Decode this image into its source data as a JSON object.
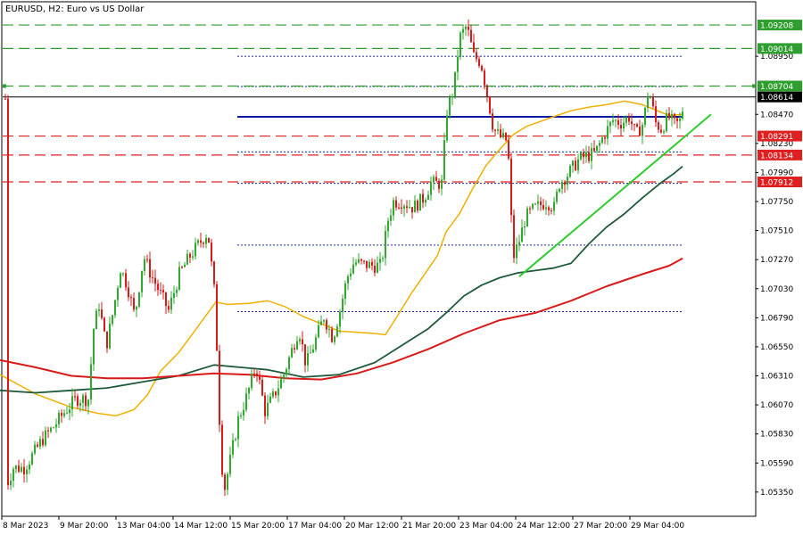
{
  "chart_data": {
    "type": "candlestick",
    "title": "EURUSD, H2:  Euro vs US Dollar",
    "ylim": [
      1.0515,
      1.094
    ],
    "y_ticks": [
      "1.08950",
      "1.08470",
      "1.08230",
      "1.07990",
      "1.07750",
      "1.07510",
      "1.07270",
      "1.07030",
      "1.06790",
      "1.06550",
      "1.06310",
      "1.06070",
      "1.05830",
      "1.05590",
      "1.05350"
    ],
    "x_ticks": [
      "8 Mar 2023",
      "9 Mar 20:00",
      "13 Mar 04:00",
      "14 Mar 12:00",
      "15 Mar 20:00",
      "17 Mar 04:00",
      "20 Mar 12:00",
      "21 Mar 20:00",
      "23 Mar 04:00",
      "24 Mar 12:00",
      "27 Mar 20:00",
      "29 Mar 04:00"
    ],
    "price_label": "1.08614",
    "levels": [
      {
        "value": 1.09208,
        "label": "1.09208",
        "style": "green-dash",
        "color": "#2e9e2e"
      },
      {
        "value": 1.09014,
        "label": "1.09014",
        "style": "green-dash",
        "color": "#2e9e2e"
      },
      {
        "value": 1.08704,
        "label": "1.08704",
        "style": "green-dash",
        "color": "#2e9e2e"
      },
      {
        "value": 1.08291,
        "label": "1.08291",
        "style": "red-dash",
        "color": "#e02020"
      },
      {
        "value": 1.08134,
        "label": "1.08134",
        "style": "red-dash",
        "color": "#e02020"
      },
      {
        "value": 1.07912,
        "label": "1.07912",
        "style": "red-dash",
        "color": "#e02020"
      }
    ],
    "dotted_levels": [
      1.0895,
      1.087,
      1.0816,
      1.079,
      1.0739,
      1.0684
    ],
    "blue_level": {
      "value": 1.0845,
      "x_from": 266,
      "x_to": 766
    },
    "trendline": {
      "from": [
        582,
        1.0713
      ],
      "to": [
        797,
        1.0847
      ]
    },
    "moving_averages": [
      {
        "key": "ma_fast",
        "color": "#f0b000",
        "width": 1.5,
        "points": [
          [
            0,
            1.0632
          ],
          [
            40,
            1.0616
          ],
          [
            80,
            1.0605
          ],
          [
            110,
            1.06
          ],
          [
            130,
            1.0598
          ],
          [
            150,
            1.0603
          ],
          [
            165,
            1.0615
          ],
          [
            180,
            1.0635
          ],
          [
            200,
            1.065
          ],
          [
            215,
            1.0665
          ],
          [
            228,
            1.0678
          ],
          [
            242,
            1.0692
          ],
          [
            255,
            1.069
          ],
          [
            280,
            1.0691
          ],
          [
            300,
            1.0693
          ],
          [
            320,
            1.0688
          ],
          [
            340,
            1.068
          ],
          [
            360,
            1.0674
          ],
          [
            380,
            1.0668
          ],
          [
            400,
            1.0667
          ],
          [
            420,
            1.0666
          ],
          [
            432,
            1.0665
          ],
          [
            445,
            1.068
          ],
          [
            460,
            1.0698
          ],
          [
            475,
            1.0714
          ],
          [
            490,
            1.073
          ],
          [
            500,
            1.075
          ],
          [
            515,
            1.0765
          ],
          [
            530,
            1.0786
          ],
          [
            545,
            1.0805
          ],
          [
            560,
            1.0818
          ],
          [
            575,
            1.083
          ],
          [
            590,
            1.0837
          ],
          [
            605,
            1.0841
          ],
          [
            620,
            1.0845
          ],
          [
            640,
            1.085
          ],
          [
            660,
            1.0853
          ],
          [
            680,
            1.0855
          ],
          [
            700,
            1.0858
          ],
          [
            720,
            1.0855
          ],
          [
            740,
            1.0849
          ],
          [
            750,
            1.0846
          ],
          [
            765,
            1.0847
          ]
        ]
      },
      {
        "key": "ma_mid",
        "color": "#1f5a3a",
        "width": 1.8,
        "points": [
          [
            0,
            1.0619
          ],
          [
            40,
            1.0617
          ],
          [
            80,
            1.0619
          ],
          [
            120,
            1.0621
          ],
          [
            160,
            1.0626
          ],
          [
            200,
            1.0631
          ],
          [
            240,
            1.064
          ],
          [
            270,
            1.0638
          ],
          [
            300,
            1.0636
          ],
          [
            340,
            1.063
          ],
          [
            380,
            1.0632
          ],
          [
            420,
            1.0642
          ],
          [
            450,
            1.0656
          ],
          [
            480,
            1.067
          ],
          [
            500,
            1.0683
          ],
          [
            520,
            1.0697
          ],
          [
            540,
            1.0706
          ],
          [
            560,
            1.0712
          ],
          [
            580,
            1.0716
          ],
          [
            600,
            1.0718
          ],
          [
            620,
            1.072
          ],
          [
            640,
            1.0724
          ],
          [
            660,
            1.074
          ],
          [
            680,
            1.0754
          ],
          [
            700,
            1.0765
          ],
          [
            720,
            1.0778
          ],
          [
            740,
            1.079
          ],
          [
            755,
            1.0798
          ],
          [
            765,
            1.0804
          ]
        ]
      },
      {
        "key": "ma_slow",
        "color": "#d81a1a",
        "width": 2.0,
        "points": [
          [
            0,
            1.0644
          ],
          [
            40,
            1.0638
          ],
          [
            80,
            1.0631
          ],
          [
            120,
            1.0629
          ],
          [
            160,
            1.0629
          ],
          [
            200,
            1.0631
          ],
          [
            240,
            1.0633
          ],
          [
            280,
            1.0632
          ],
          [
            320,
            1.0629
          ],
          [
            360,
            1.0628
          ],
          [
            400,
            1.0633
          ],
          [
            440,
            1.0642
          ],
          [
            480,
            1.0653
          ],
          [
            520,
            1.0666
          ],
          [
            560,
            1.0677
          ],
          [
            600,
            1.0683
          ],
          [
            640,
            1.0693
          ],
          [
            680,
            1.0705
          ],
          [
            720,
            1.0715
          ],
          [
            750,
            1.0722
          ],
          [
            765,
            1.0728
          ]
        ]
      }
    ],
    "candle_anchors": [
      [
        6,
        1.054
      ],
      [
        14,
        1.0555
      ],
      [
        26,
        1.0555
      ],
      [
        36,
        1.0566
      ],
      [
        46,
        1.0578
      ],
      [
        58,
        1.0588
      ],
      [
        70,
        1.06
      ],
      [
        84,
        1.0612
      ],
      [
        98,
        1.0612
      ],
      [
        104,
        1.067
      ],
      [
        110,
        1.069
      ],
      [
        118,
        1.0655
      ],
      [
        126,
        1.0685
      ],
      [
        134,
        1.072
      ],
      [
        142,
        1.0705
      ],
      [
        150,
        1.068
      ],
      [
        160,
        1.073
      ],
      [
        168,
        1.0715
      ],
      [
        178,
        1.07
      ],
      [
        188,
        1.0685
      ],
      [
        200,
        1.0715
      ],
      [
        212,
        1.073
      ],
      [
        222,
        1.074
      ],
      [
        232,
        1.075
      ],
      [
        240,
        1.0695
      ],
      [
        246,
        1.0575
      ],
      [
        250,
        1.0535
      ],
      [
        258,
        1.0565
      ],
      [
        266,
        1.0595
      ],
      [
        276,
        1.0615
      ],
      [
        286,
        1.064
      ],
      [
        296,
        1.0602
      ],
      [
        304,
        1.0612
      ],
      [
        316,
        1.063
      ],
      [
        326,
        1.0652
      ],
      [
        334,
        1.067
      ],
      [
        342,
        1.064
      ],
      [
        350,
        1.0655
      ],
      [
        362,
        1.068
      ],
      [
        372,
        1.0662
      ],
      [
        380,
        1.0685
      ],
      [
        388,
        1.0712
      ],
      [
        396,
        1.0725
      ],
      [
        406,
        1.0723
      ],
      [
        416,
        1.0722
      ],
      [
        426,
        1.0722
      ],
      [
        434,
        1.076
      ],
      [
        440,
        1.0775
      ],
      [
        450,
        1.0775
      ],
      [
        462,
        1.077
      ],
      [
        474,
        1.0778
      ],
      [
        482,
        1.079
      ],
      [
        494,
        1.079
      ],
      [
        500,
        1.085
      ],
      [
        508,
        1.087
      ],
      [
        514,
        1.091
      ],
      [
        522,
        1.092
      ],
      [
        530,
        1.0895
      ],
      [
        538,
        1.089
      ],
      [
        546,
        1.086
      ],
      [
        552,
        1.0835
      ],
      [
        560,
        1.0828
      ],
      [
        568,
        1.0825
      ],
      [
        574,
        1.0728
      ],
      [
        580,
        1.074
      ],
      [
        588,
        1.0762
      ],
      [
        596,
        1.0768
      ],
      [
        604,
        1.0772
      ],
      [
        612,
        1.0775
      ],
      [
        620,
        1.077
      ],
      [
        626,
        1.079
      ],
      [
        636,
        1.0798
      ],
      [
        648,
        1.081
      ],
      [
        658,
        1.0813
      ],
      [
        666,
        1.0815
      ],
      [
        676,
        1.083
      ],
      [
        686,
        1.0842
      ],
      [
        696,
        1.084
      ],
      [
        704,
        1.0845
      ],
      [
        712,
        1.083
      ],
      [
        720,
        1.084
      ],
      [
        726,
        1.0868
      ],
      [
        734,
        1.084
      ],
      [
        740,
        1.0835
      ],
      [
        748,
        1.0845
      ],
      [
        756,
        1.0838
      ],
      [
        762,
        1.0842
      ],
      [
        766,
        1.086
      ]
    ]
  }
}
